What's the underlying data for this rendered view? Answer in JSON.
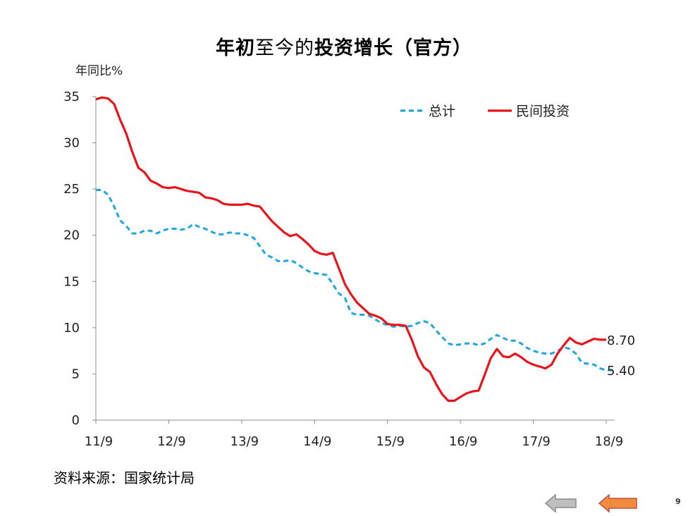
{
  "slide": {
    "title_bold_1": "年初",
    "title_normal": "至今的",
    "title_bold_2": "投资增长（官方）",
    "source": "资料来源：国家统计局",
    "page_number": "9"
  },
  "nav": {
    "prev_icon": "arrow-left-icon",
    "next_icon": "arrow-left-icon",
    "prev_color": "#bfbfbf",
    "next_color": "#f28b3c"
  },
  "chart_data": {
    "type": "line",
    "title": "年初至今的投资增长（官方）",
    "ylabel": "年同比%",
    "xlabel": "",
    "ylim": [
      0,
      35
    ],
    "yticks": [
      0,
      5,
      10,
      15,
      20,
      25,
      30,
      35
    ],
    "x_tick_labels": [
      "11/9",
      "12/9",
      "13/9",
      "14/9",
      "15/9",
      "16/9",
      "17/9",
      "18/9"
    ],
    "x_tick_months": [
      0,
      12,
      24,
      36,
      48,
      60,
      72,
      84
    ],
    "legend_position": "top-right",
    "grid": false,
    "series": [
      {
        "name": "总计",
        "style": "dashed",
        "color": "#1fa6e0",
        "end_label": "5.40",
        "points": [
          [
            0,
            24.9
          ],
          [
            1,
            24.9
          ],
          [
            2,
            24.4
          ],
          [
            3,
            23.1
          ],
          [
            4,
            21.6
          ],
          [
            5,
            21.0
          ],
          [
            6,
            20.2
          ],
          [
            7,
            20.2
          ],
          [
            8,
            20.5
          ],
          [
            9,
            20.5
          ],
          [
            10,
            20.2
          ],
          [
            11,
            20.5
          ],
          [
            12,
            20.7
          ],
          [
            13,
            20.7
          ],
          [
            14,
            20.6
          ],
          [
            15,
            20.7
          ],
          [
            16,
            21.2
          ],
          [
            17,
            20.9
          ],
          [
            18,
            20.7
          ],
          [
            19,
            20.4
          ],
          [
            20,
            20.1
          ],
          [
            21,
            20.1
          ],
          [
            22,
            20.3
          ],
          [
            23,
            20.2
          ],
          [
            24,
            20.2
          ],
          [
            25,
            20.0
          ],
          [
            26,
            19.7
          ],
          [
            27,
            18.8
          ],
          [
            28,
            17.9
          ],
          [
            29,
            17.6
          ],
          [
            30,
            17.2
          ],
          [
            31,
            17.2
          ],
          [
            32,
            17.3
          ],
          [
            33,
            17.0
          ],
          [
            34,
            16.5
          ],
          [
            35,
            16.1
          ],
          [
            36,
            15.9
          ],
          [
            37,
            15.8
          ],
          [
            38,
            15.7
          ],
          [
            39,
            14.7
          ],
          [
            40,
            13.7
          ],
          [
            41,
            13.2
          ],
          [
            42,
            11.6
          ],
          [
            43,
            11.4
          ],
          [
            44,
            11.4
          ],
          [
            45,
            11.3
          ],
          [
            46,
            10.9
          ],
          [
            47,
            10.5
          ],
          [
            48,
            10.3
          ],
          [
            49,
            10.1
          ],
          [
            50,
            10.2
          ],
          [
            51,
            10.1
          ],
          [
            52,
            10.2
          ],
          [
            53,
            10.5
          ],
          [
            54,
            10.7
          ],
          [
            55,
            10.5
          ],
          [
            56,
            9.7
          ],
          [
            57,
            9.0
          ],
          [
            58,
            8.3
          ],
          [
            59,
            8.1
          ],
          [
            60,
            8.2
          ],
          [
            61,
            8.3
          ],
          [
            62,
            8.3
          ],
          [
            63,
            8.1
          ],
          [
            64,
            8.3
          ],
          [
            65,
            8.8
          ],
          [
            66,
            9.2
          ],
          [
            67,
            8.9
          ],
          [
            68,
            8.6
          ],
          [
            69,
            8.6
          ],
          [
            70,
            8.3
          ],
          [
            71,
            7.8
          ],
          [
            72,
            7.5
          ],
          [
            73,
            7.3
          ],
          [
            74,
            7.2
          ],
          [
            75,
            7.2
          ],
          [
            76,
            7.5
          ],
          [
            77,
            7.9
          ],
          [
            78,
            7.7
          ],
          [
            79,
            7.2
          ],
          [
            80,
            6.2
          ],
          [
            81,
            6.1
          ],
          [
            82,
            6.0
          ],
          [
            83,
            5.6
          ],
          [
            84,
            5.4
          ],
          [
            85,
            5.4
          ]
        ]
      },
      {
        "name": "民间投资",
        "style": "solid",
        "color": "#e8141b",
        "end_label": "8.70",
        "points": [
          [
            0,
            34.7
          ],
          [
            1,
            34.9
          ],
          [
            2,
            34.8
          ],
          [
            3,
            34.2
          ],
          [
            4,
            32.5
          ],
          [
            5,
            31.0
          ],
          [
            6,
            29.0
          ],
          [
            7,
            27.3
          ],
          [
            8,
            26.8
          ],
          [
            9,
            25.9
          ],
          [
            10,
            25.6
          ],
          [
            11,
            25.2
          ],
          [
            12,
            25.1
          ],
          [
            13,
            25.2
          ],
          [
            14,
            25.0
          ],
          [
            15,
            24.8
          ],
          [
            16,
            24.7
          ],
          [
            17,
            24.6
          ],
          [
            18,
            24.1
          ],
          [
            19,
            24.0
          ],
          [
            20,
            23.8
          ],
          [
            21,
            23.4
          ],
          [
            22,
            23.3
          ],
          [
            23,
            23.3
          ],
          [
            24,
            23.3
          ],
          [
            25,
            23.4
          ],
          [
            26,
            23.2
          ],
          [
            27,
            23.1
          ],
          [
            28,
            22.3
          ],
          [
            29,
            21.5
          ],
          [
            30,
            20.9
          ],
          [
            31,
            20.3
          ],
          [
            32,
            19.9
          ],
          [
            33,
            20.1
          ],
          [
            34,
            19.6
          ],
          [
            35,
            19.0
          ],
          [
            36,
            18.3
          ],
          [
            37,
            18.0
          ],
          [
            38,
            17.9
          ],
          [
            39,
            18.1
          ],
          [
            40,
            16.4
          ],
          [
            41,
            14.7
          ],
          [
            42,
            13.6
          ],
          [
            43,
            12.7
          ],
          [
            44,
            12.1
          ],
          [
            45,
            11.5
          ],
          [
            46,
            11.3
          ],
          [
            47,
            11.0
          ],
          [
            48,
            10.4
          ],
          [
            49,
            10.3
          ],
          [
            50,
            10.3
          ],
          [
            51,
            10.2
          ],
          [
            52,
            8.7
          ],
          [
            53,
            6.9
          ],
          [
            54,
            5.7
          ],
          [
            55,
            5.2
          ],
          [
            56,
            3.9
          ],
          [
            57,
            2.8
          ],
          [
            58,
            2.1
          ],
          [
            59,
            2.1
          ],
          [
            60,
            2.5
          ],
          [
            61,
            2.9
          ],
          [
            62,
            3.1
          ],
          [
            63,
            3.2
          ],
          [
            64,
            4.9
          ],
          [
            65,
            6.7
          ],
          [
            66,
            7.7
          ],
          [
            67,
            6.9
          ],
          [
            68,
            6.8
          ],
          [
            69,
            7.2
          ],
          [
            70,
            6.8
          ],
          [
            71,
            6.3
          ],
          [
            72,
            6.0
          ],
          [
            73,
            5.8
          ],
          [
            74,
            5.6
          ],
          [
            75,
            6.0
          ],
          [
            76,
            7.2
          ],
          [
            77,
            8.1
          ],
          [
            78,
            8.9
          ],
          [
            79,
            8.4
          ],
          [
            80,
            8.2
          ],
          [
            81,
            8.5
          ],
          [
            82,
            8.8
          ],
          [
            83,
            8.7
          ],
          [
            84,
            8.7
          ]
        ]
      }
    ]
  }
}
